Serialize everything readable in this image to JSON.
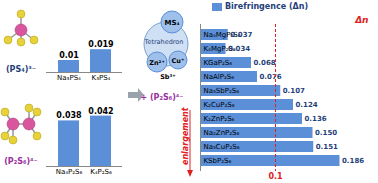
{
  "chart_data": [
    {
      "type": "bar",
      "title": "(PS₄)³⁻",
      "categories": [
        "Na₃PS₄",
        "K₃PS₄"
      ],
      "values": [
        0.01,
        0.019
      ],
      "color": "#5b8fd8",
      "ylim": [
        0,
        0.05
      ],
      "yticks": [],
      "data_labels": true,
      "tick_labels": "x"
    },
    {
      "type": "bar",
      "title": "(P₂S₆)⁴⁻",
      "categories": [
        "Na₄P₂S₆",
        "K₄P₂S₆"
      ],
      "values": [
        0.038,
        0.042
      ],
      "color": "#5b8fd8",
      "ylim": [
        0,
        0.05
      ],
      "yticks": [],
      "data_labels": true,
      "tick_labels": "x"
    },
    {
      "type": "bar",
      "orientation": "horizontal",
      "categories": [
        "Na₄MgP₂S₆",
        "K₄MgP₂S₆",
        "KGaP₂S₆",
        "NaAlP₂S₆",
        "Na₃SbP₂S₆",
        "K₂CuP₂S₆",
        "K₂ZnP₂S₆",
        "Na₂ZnP₂S₆",
        "Na₃CuP₂S₆",
        "KSbP₂S₆"
      ],
      "series": [
        {
          "name": "Birefringence (Δn)",
          "color": "#5b8fd8",
          "values": [
            0.037,
            0.034,
            0.068,
            0.076,
            0.107,
            0.124,
            0.136,
            0.15,
            0.151,
            0.186
          ],
          "value_labels": [
            "0.037",
            "0.034",
            "0.068",
            "0.076",
            "0.107",
            "0.124",
            "0.136",
            "0.150",
            "0.151",
            "0.186"
          ]
        }
      ],
      "xlim": [
        0,
        0.2
      ],
      "xticks": [],
      "reference_line": 0.1,
      "annotations": [
        "Δn",
        "enlargement"
      ],
      "data_labels": true,
      "tick_labels": false,
      "legend": "top"
    }
  ],
  "diagram": {
    "center": "Tetrahedron",
    "group": "MS₄",
    "ions": [
      "Zn²⁺",
      "Cu⁺",
      "Sb³⁺"
    ],
    "anion": "+ (P₂S₆)⁴⁻"
  }
}
